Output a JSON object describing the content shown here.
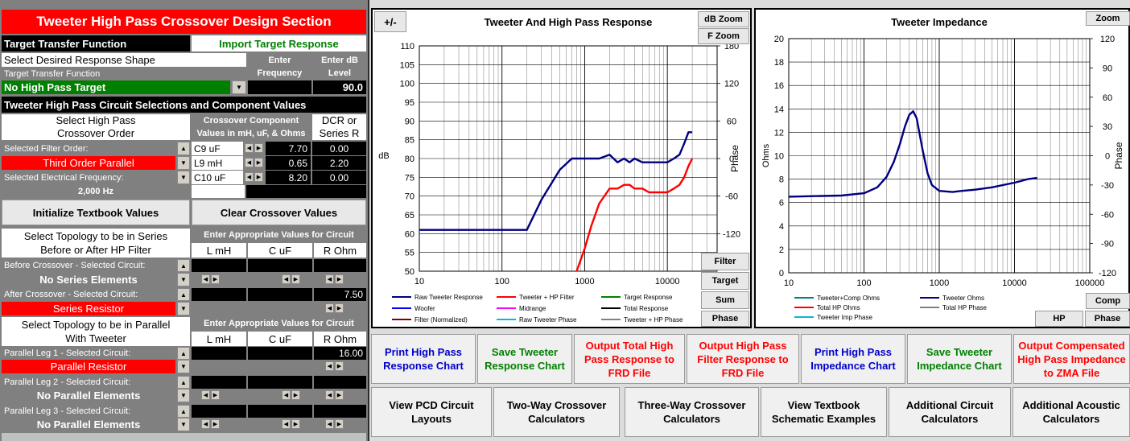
{
  "left": {
    "title": "Tweeter High Pass Crossover Design Section",
    "ttf_label": "Target Transfer Function",
    "import_btn": "Import Target Response",
    "select_shape": "Select Desired Response Shape",
    "enter_freq": "Enter Frequency",
    "enter_db": "Enter dB Level",
    "ttf_small": "Target Transfer Function",
    "target_value": "No High Pass Target",
    "db_level": "90.0",
    "circuit_header": "Tweeter High Pass Circuit Selections and Component Values",
    "select_order": "Select High Pass Crossover Order",
    "crossover_comp": "Crossover Component Values in mH, uF, & Ohms",
    "dcr": "DCR or Series R",
    "sel_filter_order": "Selected Filter Order:",
    "order_value": "Third Order Parallel",
    "sel_elec_freq": "Selected Electrical Frequency:",
    "freq_value": "2,000 Hz",
    "components": [
      {
        "name": "C9  uF",
        "value": "7.70",
        "dcr": "0.00"
      },
      {
        "name": "L9 mH",
        "value": "0.65",
        "dcr": "2.20"
      },
      {
        "name": "C10  uF",
        "value": "8.20",
        "dcr": "0.00"
      }
    ],
    "init_btn": "Initialize Textbook Values",
    "clear_btn": "Clear Crossover Values",
    "series_topology": "Select Topology to be in Series Before or After HP Filter",
    "enter_values": "Enter Appropriate Values for Circuit",
    "col_l": "L mH",
    "col_c": "C uF",
    "col_r": "R Ohm",
    "before_label": "Before Crossover - Selected Circuit:",
    "before_value": "No Series Elements",
    "after_label": "After Crossover - Selected Circuit:",
    "after_value": "Series Resistor",
    "after_r": "7.50",
    "parallel_topology": "Select Topology to be in Parallel With Tweeter",
    "enter_values2": "Enter Appropriate Values for Circuit",
    "col_l2": "L mH",
    "col_c2": "C uF",
    "col_r2": "R Ohm",
    "leg1_label": "Parallel Leg 1 - Selected Circuit:",
    "leg1_value": "Parallel Resistor",
    "leg1_r": "16.00",
    "leg2_label": "Parallel Leg 2 - Selected Circuit:",
    "leg2_value": "No Parallel Elements",
    "leg3_label": "Parallel Leg 3 - Selected Circuit:",
    "leg3_value": "No Parallel Elements"
  },
  "chart1": {
    "title": "Tweeter  And High Pass Response",
    "plusminus": "+/-",
    "dbzoom": "dB Zoom",
    "fzoom": "F Zoom",
    "filter_btn": "Filter",
    "target_btn": "Target",
    "sum_btn": "Sum",
    "phase_btn": "Phase",
    "ylabel": "dB",
    "y2label": "Phase",
    "yticks": [
      "110",
      "105",
      "100",
      "95",
      "90",
      "85",
      "80",
      "75",
      "70",
      "65",
      "60",
      "55",
      "50"
    ],
    "y2ticks": [
      "180",
      "120",
      "60",
      "0",
      "-60",
      "-120"
    ],
    "xticks": [
      "10",
      "100",
      "1000",
      "10000"
    ],
    "legend": [
      "Raw Tweeter Response",
      "Tweeter + HP Filter",
      "Target Response",
      "Woofer",
      "Midrange",
      "Total Response",
      "Filter (Normalized)",
      "Raw Tweeter Phase",
      "Tweeter + HP Phase"
    ]
  },
  "chart2": {
    "title": "Tweeter  Impedance",
    "zoom": "Zoom",
    "comp_btn": "Comp",
    "hp_btn": "HP",
    "phase_btn": "Phase",
    "ylabel": "Ohms",
    "y2label": "Phase",
    "yticks": [
      "20",
      "18",
      "16",
      "14",
      "12",
      "10",
      "8",
      "6",
      "4",
      "2",
      "0"
    ],
    "y2ticks": [
      "120",
      "90",
      "60",
      "30",
      "0",
      "-30",
      "-60",
      "-90",
      "-120"
    ],
    "xticks": [
      "10",
      "100",
      "1000",
      "10000",
      "100000"
    ],
    "legend": [
      "Tweeter+Comp Ohms",
      "Tweeter Ohms",
      "Total HP Ohms",
      "Total HP Phase",
      "Tweeter Imp Phase"
    ]
  },
  "buttons_row1": [
    {
      "label": "Print High Pass Response Chart",
      "color": "#0000cc"
    },
    {
      "label": "Save Tweeter Response Chart",
      "color": "#008000"
    },
    {
      "label": "Output Total High Pass Response to FRD File",
      "color": "#ff0000"
    },
    {
      "label": "Output High Pass Filter Response to FRD File",
      "color": "#ff0000"
    },
    {
      "label": "Print High Pass Impedance Chart",
      "color": "#0000cc"
    },
    {
      "label": "Save Tweeter Impedance Chart",
      "color": "#008000"
    },
    {
      "label": "Output Compensated High Pass Impedance to ZMA File",
      "color": "#ff0000"
    }
  ],
  "buttons_row2": [
    {
      "label": "View PCD Circuit Layouts"
    },
    {
      "label": "Two-Way Crossover Calculators"
    },
    {
      "label": "Three-Way Crossover Calculators"
    },
    {
      "label": "View Textbook Schematic Examples"
    },
    {
      "label": "Additional Circuit Calculators"
    },
    {
      "label": "Additional Acoustic Calculators"
    }
  ],
  "chart_data": [
    {
      "type": "line",
      "title": "Tweeter  And High Pass Response",
      "xscale": "log",
      "xlim": [
        10,
        40000
      ],
      "ylim": [
        50,
        110
      ],
      "ylabel": "dB",
      "y2label": "Phase",
      "y2lim": [
        -180,
        180
      ],
      "series": [
        {
          "name": "Raw Tweeter Response",
          "color": "#000080",
          "x": [
            10,
            100,
            200,
            300,
            500,
            700,
            1000,
            1500,
            2000,
            2500,
            3000,
            3500,
            4000,
            5000,
            6000,
            8000,
            10000,
            12000,
            14000,
            16000,
            18000,
            20000
          ],
          "y": [
            61,
            61,
            61,
            69,
            77,
            80,
            80,
            80,
            81,
            79,
            80,
            79,
            80,
            79,
            79,
            79,
            79,
            80,
            81,
            84,
            87,
            87
          ]
        },
        {
          "name": "Tweeter + HP Filter",
          "color": "#ff0000",
          "x": [
            800,
            1000,
            1200,
            1500,
            2000,
            2500,
            3000,
            3500,
            4000,
            5000,
            6000,
            8000,
            10000,
            12000,
            14000,
            16000,
            18000,
            20000
          ],
          "y": [
            50,
            56,
            62,
            68,
            72,
            72,
            73,
            73,
            72,
            72,
            71,
            71,
            71,
            72,
            73,
            75,
            78,
            80
          ]
        }
      ]
    },
    {
      "type": "line",
      "title": "Tweeter  Impedance",
      "xscale": "log",
      "xlim": [
        10,
        100000
      ],
      "ylim": [
        0,
        20
      ],
      "ylabel": "Ohms",
      "y2label": "Phase",
      "y2lim": [
        -120,
        120
      ],
      "series": [
        {
          "name": "Tweeter Ohms",
          "color": "#000080",
          "x": [
            10,
            50,
            100,
            150,
            200,
            250,
            300,
            350,
            400,
            450,
            500,
            600,
            700,
            800,
            1000,
            1500,
            2000,
            3000,
            5000,
            10000,
            15000,
            20000
          ],
          "y": [
            6.5,
            6.6,
            6.8,
            7.3,
            8.2,
            9.5,
            11.0,
            12.5,
            13.5,
            13.8,
            13.2,
            10.5,
            8.5,
            7.5,
            7.0,
            6.9,
            7.0,
            7.1,
            7.3,
            7.7,
            8.0,
            8.1
          ]
        }
      ]
    }
  ]
}
